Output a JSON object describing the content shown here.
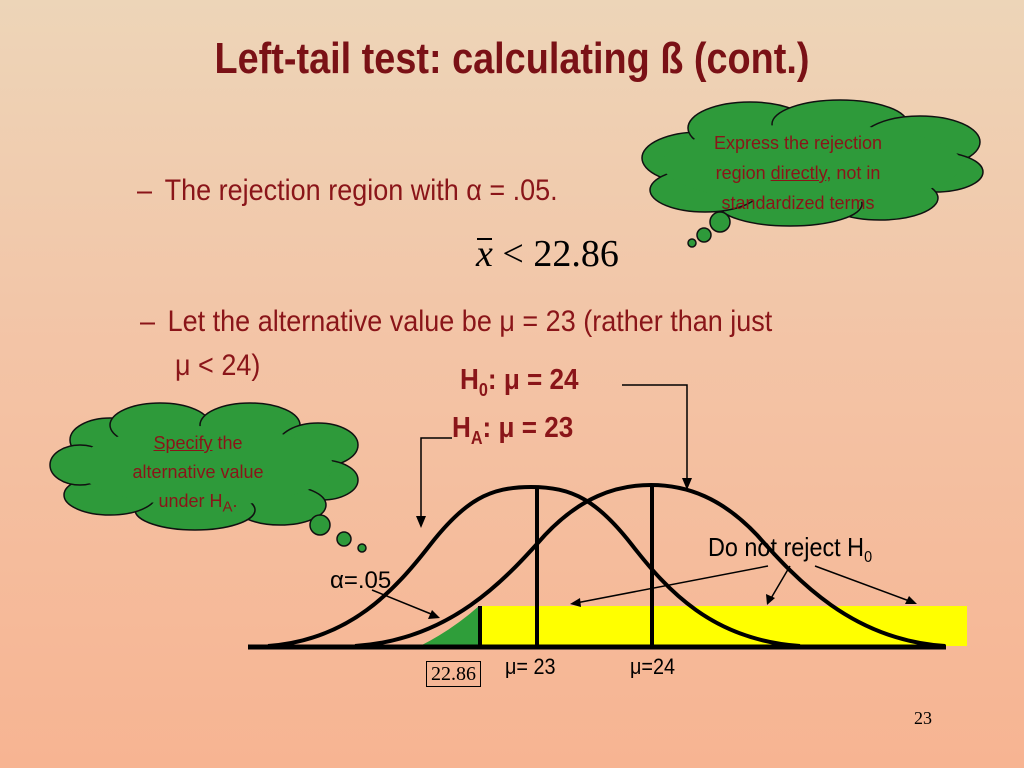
{
  "slide": {
    "title": "Left-tail test: calculating ß (cont.)",
    "page_number": "23"
  },
  "bullets": {
    "b1": "The rejection region with α = .05.",
    "b2_line1": "Let the alternative value be μ = 23 (rather than just",
    "b2_line2": "μ < 24)",
    "dash": "–"
  },
  "formula": {
    "variable": "x",
    "relation": "<",
    "value": "22.86"
  },
  "hypotheses": {
    "h0_letter": "H",
    "h0_sub": "0",
    "h0_rest": ": μ = 24",
    "ha_letter": "H",
    "ha_sub": "A",
    "ha_rest": ": μ = 23"
  },
  "cloud_top": {
    "line1": "Express the rejection",
    "line2_pre": "region ",
    "line2_underlined": "directly",
    "line2_post": ", not in",
    "line3": "standardized terms"
  },
  "cloud_left": {
    "line1_underlined": "Specify",
    "line1_post": " the",
    "line2": "alternative value",
    "line3_pre": "under H",
    "line3_sub": "A",
    "line3_post": "."
  },
  "diagram": {
    "do_not_reject_pre": "Do not reject H",
    "do_not_reject_sub": "0",
    "alpha_label": "α=.05",
    "critical_value_label": "22.86",
    "mu23_label": "μ= 23",
    "mu24_label": "μ=24",
    "colors": {
      "acceptance_region": "#ffff00",
      "alpha_region": "#2f9e3a",
      "cloud_fill": "#2e9a3a",
      "text_dark_red": "#8a1519"
    }
  }
}
